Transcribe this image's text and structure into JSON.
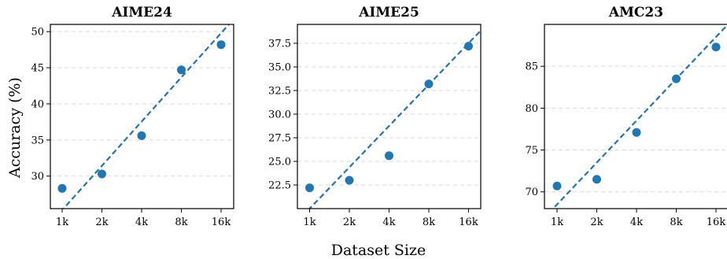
{
  "figure": {
    "ylabel": "Accuracy (%)",
    "xlabel": "Dataset Size",
    "colors": {
      "points": "#1f77b4",
      "fit_line": "#1f77b4",
      "grid": "#d9d9d9"
    }
  },
  "chart_data": [
    {
      "type": "scatter",
      "title": "AIME24",
      "categories": [
        "1k",
        "2k",
        "4k",
        "8k",
        "16k"
      ],
      "values": [
        28.3,
        30.3,
        35.6,
        44.7,
        48.2
      ],
      "ylim": [
        25.5,
        51.0
      ],
      "yticks": [
        "30",
        "35",
        "40",
        "45",
        "50"
      ],
      "fit_line": {
        "start": 25.3,
        "end": 49.8
      },
      "grid": "y-dashed"
    },
    {
      "type": "scatter",
      "title": "AIME25",
      "categories": [
        "1k",
        "2k",
        "4k",
        "8k",
        "16k"
      ],
      "values": [
        22.2,
        23.0,
        25.6,
        33.2,
        37.2
      ],
      "ylim": [
        20.0,
        39.5
      ],
      "yticks": [
        "22.5",
        "25.0",
        "27.5",
        "30.0",
        "32.5",
        "35.0",
        "37.5"
      ],
      "fit_line": {
        "start": 20.0,
        "end": 37.5
      },
      "grid": "y-dashed"
    },
    {
      "type": "scatter",
      "title": "AMC23",
      "categories": [
        "1k",
        "2k",
        "4k",
        "8k",
        "16k"
      ],
      "values": [
        70.7,
        71.5,
        77.1,
        83.5,
        87.3
      ],
      "ylim": [
        68.0,
        90.0
      ],
      "yticks": [
        "70",
        "75",
        "80",
        "85"
      ],
      "fit_line": {
        "start": 68.5,
        "end": 88.5
      },
      "grid": "y-dashed"
    }
  ]
}
